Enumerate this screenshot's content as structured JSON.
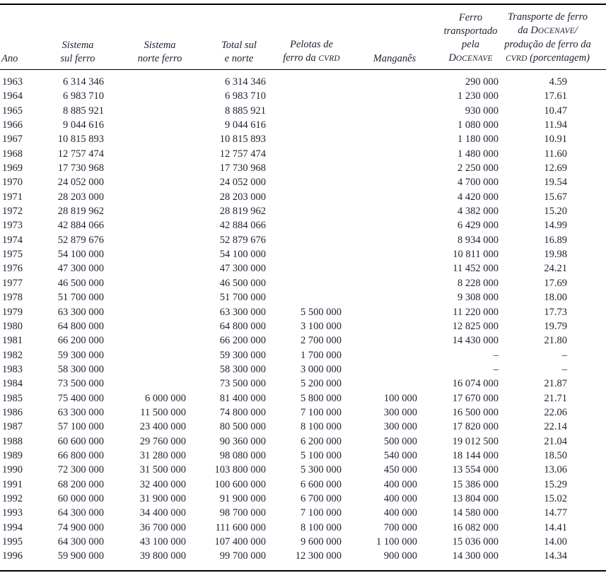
{
  "page": {
    "background_color": "#ffffff",
    "text_color": "#1d2130",
    "rule_color": "#000000"
  },
  "table": {
    "columns": [
      {
        "id": "ano",
        "lines": [
          "Ano"
        ]
      },
      {
        "id": "sistema-sul-ferro",
        "lines": [
          "Sistema",
          "sul ferro"
        ]
      },
      {
        "id": "sistema-norte-ferro",
        "lines": [
          "Sistema",
          "norte ferro"
        ]
      },
      {
        "id": "total-sul-e-norte",
        "lines": [
          "Total sul",
          "e norte"
        ]
      },
      {
        "id": "pelotas-de-ferro-da-cvrd",
        "lines": [
          "Pelotas de",
          "ferro da CVRD"
        ]
      },
      {
        "id": "manganes",
        "lines": [
          "Manganês"
        ]
      },
      {
        "id": "ferro-transportado-pela-docenave",
        "lines": [
          "Ferro",
          "transportado",
          "pela",
          "DOCENAVE"
        ]
      },
      {
        "id": "transporte-porcentagem",
        "lines": [
          "Transporte de ferro",
          "da DOCENAVE/",
          "produção de ferro da",
          "CVRD (porcentagem)"
        ]
      }
    ],
    "rows": [
      [
        "1963",
        "6 314 346",
        "",
        "6 314 346",
        "",
        "",
        "290 000",
        "4.59"
      ],
      [
        "1964",
        "6 983 710",
        "",
        "6 983 710",
        "",
        "",
        "1 230 000",
        "17.61"
      ],
      [
        "1965",
        "8 885 921",
        "",
        "8 885 921",
        "",
        "",
        "930 000",
        "10.47"
      ],
      [
        "1966",
        "9 044 616",
        "",
        "9 044 616",
        "",
        "",
        "1 080 000",
        "11.94"
      ],
      [
        "1967",
        "10 815 893",
        "",
        "10 815 893",
        "",
        "",
        "1 180 000",
        "10.91"
      ],
      [
        "1968",
        "12 757 474",
        "",
        "12 757 474",
        "",
        "",
        "1 480 000",
        "11.60"
      ],
      [
        "1969",
        "17 730 968",
        "",
        "17 730 968",
        "",
        "",
        "2 250 000",
        "12.69"
      ],
      [
        "1970",
        "24 052 000",
        "",
        "24 052 000",
        "",
        "",
        "4 700 000",
        "19.54"
      ],
      [
        "1971",
        "28 203 000",
        "",
        "28 203 000",
        "",
        "",
        "4 420 000",
        "15.67"
      ],
      [
        "1972",
        "28 819 962",
        "",
        "28 819 962",
        "",
        "",
        "4 382 000",
        "15.20"
      ],
      [
        "1973",
        "42 884 066",
        "",
        "42 884 066",
        "",
        "",
        "6 429 000",
        "14.99"
      ],
      [
        "1974",
        "52 879 676",
        "",
        "52 879 676",
        "",
        "",
        "8 934 000",
        "16.89"
      ],
      [
        "1975",
        "54 100 000",
        "",
        "54 100 000",
        "",
        "",
        "10 811 000",
        "19.98"
      ],
      [
        "1976",
        "47 300 000",
        "",
        "47 300 000",
        "",
        "",
        "11 452 000",
        "24.21"
      ],
      [
        "1977",
        "46 500 000",
        "",
        "46 500 000",
        "",
        "",
        "8 228 000",
        "17.69"
      ],
      [
        "1978",
        "51 700 000",
        "",
        "51 700 000",
        "",
        "",
        "9 308 000",
        "18.00"
      ],
      [
        "1979",
        "63 300 000",
        "",
        "63 300 000",
        "5 500 000",
        "",
        "11 220 000",
        "17.73"
      ],
      [
        "1980",
        "64 800 000",
        "",
        "64 800 000",
        "3 100 000",
        "",
        "12 825 000",
        "19.79"
      ],
      [
        "1981",
        "66 200 000",
        "",
        "66 200 000",
        "2 700 000",
        "",
        "14 430 000",
        "21.80"
      ],
      [
        "1982",
        "59 300 000",
        "",
        "59 300 000",
        "1 700 000",
        "",
        "–",
        "–"
      ],
      [
        "1983",
        "58 300 000",
        "",
        "58 300 000",
        "3 000 000",
        "",
        "–",
        "–"
      ],
      [
        "1984",
        "73 500 000",
        "",
        "73 500 000",
        "5 200 000",
        "",
        "16 074 000",
        "21.87"
      ],
      [
        "1985",
        "75 400 000",
        "6 000 000",
        "81 400 000",
        "5 800 000",
        "100 000",
        "17 670 000",
        "21.71"
      ],
      [
        "1986",
        "63 300 000",
        "11 500 000",
        "74 800 000",
        "7 100 000",
        "300 000",
        "16 500 000",
        "22.06"
      ],
      [
        "1987",
        "57 100 000",
        "23 400 000",
        "80 500 000",
        "8 100 000",
        "300 000",
        "17 820 000",
        "22.14"
      ],
      [
        "1988",
        "60 600 000",
        "29 760 000",
        "90 360 000",
        "6 200 000",
        "500 000",
        "19 012 500",
        "21.04"
      ],
      [
        "1989",
        "66 800 000",
        "31 280 000",
        "98 080 000",
        "5 100 000",
        "540 000",
        "18 144 000",
        "18.50"
      ],
      [
        "1990",
        "72 300 000",
        "31 500 000",
        "103 800 000",
        "5 300 000",
        "450 000",
        "13 554 000",
        "13.06"
      ],
      [
        "1991",
        "68 200 000",
        "32 400 000",
        "100 600 000",
        "6 600 000",
        "400 000",
        "15 386 000",
        "15.29"
      ],
      [
        "1992",
        "60 000 000",
        "31 900 000",
        "91 900 000",
        "6 700 000",
        "400 000",
        "13 804 000",
        "15.02"
      ],
      [
        "1993",
        "64 300 000",
        "34 400 000",
        "98 700 000",
        "7 100 000",
        "400 000",
        "14 580 000",
        "14.77"
      ],
      [
        "1994",
        "74 900 000",
        "36 700 000",
        "111 600 000",
        "8 100 000",
        "700 000",
        "16 082 000",
        "14.41"
      ],
      [
        "1995",
        "64 300 000",
        "43 100 000",
        "107 400 000",
        "9 600 000",
        "1 100 000",
        "15 036 000",
        "14.00"
      ],
      [
        "1996",
        "59 900 000",
        "39 800 000",
        "99 700 000",
        "12 300 000",
        "900 000",
        "14 300 000",
        "14.34"
      ]
    ]
  }
}
